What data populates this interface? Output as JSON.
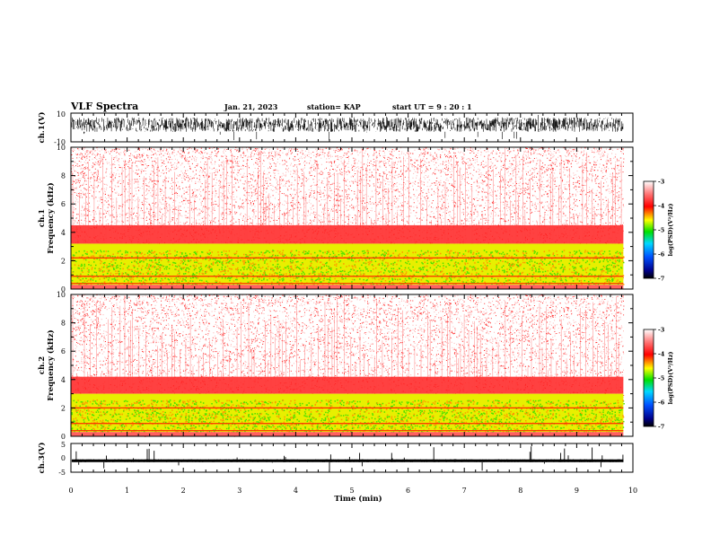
{
  "header": {
    "title": "VLF Spectra",
    "date": "Jan. 21, 2023",
    "station": "station= KAP",
    "start": "start  UT  =   9 : 20 : 1"
  },
  "colors": {
    "low": "#00008b",
    "mid": "#00e000",
    "hi": "#ffff00",
    "top": "#ff0000",
    "bg": "#ffffff"
  },
  "chart_data": [
    {
      "type": "line",
      "name": "ch1-waveform",
      "ylabel": "ch.1(V)",
      "ylim": [
        -10,
        10
      ],
      "yticks": [
        "10",
        "-10"
      ],
      "xlim": [
        0,
        10
      ],
      "approx_band": [
        -3,
        7
      ]
    },
    {
      "type": "heatmap",
      "name": "ch1-spectrogram",
      "ylabel": "ch.1\nFrequency (kHz)",
      "ylabel_top": "ch.1",
      "ylabel_bottom": "Frequency  (kHz)",
      "xlim": [
        0,
        10
      ],
      "data_xmax": 9.83,
      "ylim": [
        0,
        10
      ],
      "yticks": [
        "0",
        "2",
        "4",
        "6",
        "8",
        "10"
      ],
      "color_scale": {
        "label": "log(PSD)(V²/Hz)",
        "range": [
          -7,
          -3
        ],
        "ticks": [
          "-3",
          "-4",
          "-5",
          "-6",
          "-7"
        ]
      },
      "bands_khz": {
        "yellow_green": [
          0.3,
          3.2
        ],
        "red_dense": [
          3.2,
          4.5
        ]
      },
      "lines_khz": [
        2.2,
        0.9,
        0.4
      ]
    },
    {
      "type": "heatmap",
      "name": "ch2-spectrogram",
      "ylabel_top": "ch.2",
      "ylabel_bottom": "Frequency  (kHz)",
      "xlim": [
        0,
        10
      ],
      "data_xmax": 9.83,
      "ylim": [
        0,
        10
      ],
      "yticks": [
        "0",
        "2",
        "4",
        "6",
        "8",
        "10"
      ],
      "color_scale": {
        "label": "log(PSD)(V²/Hz)",
        "range": [
          -7,
          -3
        ],
        "ticks": [
          "-3",
          "-4",
          "-5",
          "-6",
          "-7"
        ]
      },
      "bands_khz": {
        "yellow_green": [
          0.3,
          3.0
        ],
        "red_dense": [
          3.0,
          4.2
        ]
      },
      "lines_khz": [
        2.0,
        0.9,
        0.4
      ]
    },
    {
      "type": "line",
      "name": "ch3-waveform",
      "ylabel": "ch.3(V)",
      "ylim": [
        -5,
        5
      ],
      "yticks": [
        "5",
        "0",
        "-5"
      ],
      "xlim": [
        0,
        10
      ],
      "xlabel": "Time  (min)",
      "xticks": [
        "0",
        "1",
        "2",
        "3",
        "4",
        "5",
        "6",
        "7",
        "8",
        "9",
        "10"
      ],
      "approx_band": [
        -1.5,
        -0.5
      ]
    }
  ]
}
